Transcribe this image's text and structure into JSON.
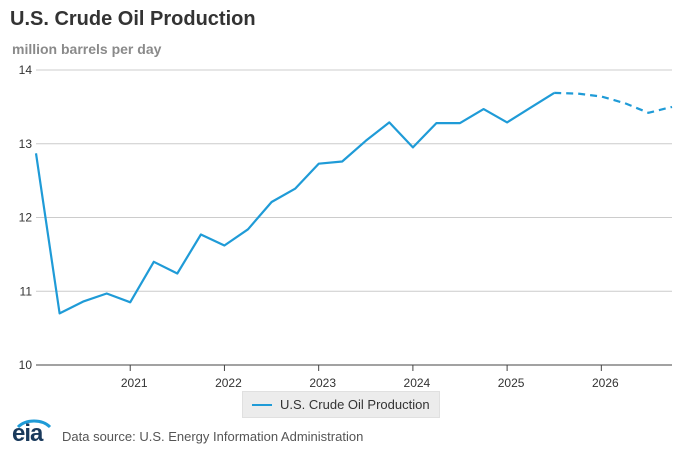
{
  "header": {
    "title": "U.S. Crude Oil Production",
    "subtitle": "million barrels per day"
  },
  "legend": {
    "label": "U.S. Crude Oil Production"
  },
  "footer": {
    "logo_text": "eia",
    "source": "Data source: U.S. Energy Information Administration"
  },
  "colors": {
    "series": "#1f9bd7",
    "grid": "#cccccc",
    "logo": "#1a3a5c"
  },
  "icons": {
    "logo": "eia-logo-icon"
  },
  "chart_data": {
    "type": "line",
    "title": "U.S. Crude Oil Production",
    "ylabel": "million barrels per day",
    "ylim": [
      10,
      14
    ],
    "yticks": [
      "10",
      "11",
      "12",
      "13",
      "14"
    ],
    "xlim": [
      2020.0,
      2026.75
    ],
    "xticks": [
      "2021",
      "2022",
      "2023",
      "2024",
      "2025",
      "2026"
    ],
    "grid": true,
    "legend_position": "bottom",
    "series": [
      {
        "name": "U.S. Crude Oil Production",
        "style": "solid",
        "x": [
          2020.0,
          2020.25,
          2020.5,
          2020.75,
          2021.0,
          2021.25,
          2021.5,
          2021.75,
          2022.0,
          2022.25,
          2022.5,
          2022.75,
          2023.0,
          2023.25,
          2023.5,
          2023.75,
          2024.0,
          2024.25,
          2024.5,
          2024.75,
          2025.0,
          2025.25,
          2025.5
        ],
        "values": [
          12.87,
          10.7,
          10.86,
          10.97,
          10.85,
          11.4,
          11.24,
          11.77,
          11.62,
          11.84,
          12.21,
          12.39,
          12.73,
          12.76,
          13.04,
          13.29,
          12.95,
          13.28,
          13.28,
          13.47,
          13.29,
          13.49,
          13.69
        ]
      },
      {
        "name": "U.S. Crude Oil Production",
        "style": "dashed",
        "x": [
          2025.5,
          2025.75,
          2026.0,
          2026.25,
          2026.5,
          2026.75
        ],
        "values": [
          13.69,
          13.68,
          13.64,
          13.55,
          13.42,
          13.5
        ]
      }
    ]
  }
}
